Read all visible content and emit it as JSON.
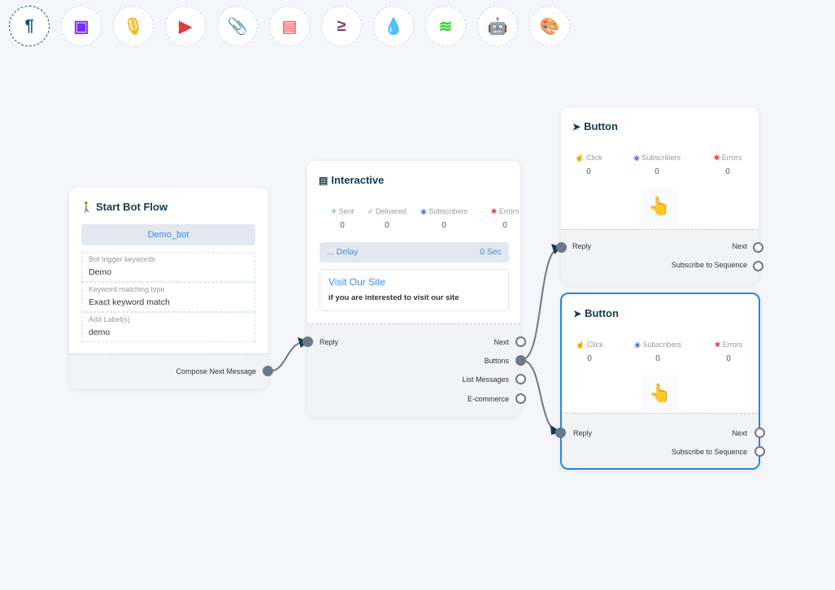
{
  "toolbar": [
    {
      "icon": "paragraph-icon",
      "glyph": "¶",
      "color": "#0d4f8b"
    },
    {
      "icon": "image-icon",
      "glyph": "▣",
      "color": "#7c2cf5"
    },
    {
      "icon": "microphone-icon",
      "glyph": "🎙",
      "color": "#f5b820"
    },
    {
      "icon": "youtube-icon",
      "glyph": "▶",
      "color": "#e03c3c"
    },
    {
      "icon": "paperclip-icon",
      "glyph": "📎",
      "color": "#26a048"
    },
    {
      "icon": "newspaper-icon",
      "glyph": "▤",
      "color": "#f47b7b"
    },
    {
      "icon": "greater-equal-icon",
      "glyph": "≥",
      "color": "#7a3c7c"
    },
    {
      "icon": "droplet-icon",
      "glyph": "💧",
      "color": "#d4143c"
    },
    {
      "icon": "stack-icon",
      "glyph": "≋",
      "color": "#2ed12e"
    },
    {
      "icon": "robot-icon",
      "glyph": "🤖",
      "color": "#1a1ae6"
    },
    {
      "icon": "palette-icon",
      "glyph": "🎨",
      "color": "#1ec81e"
    }
  ],
  "start": {
    "title": "Start Bot Flow",
    "bot": "Demo_bot",
    "fields": [
      {
        "label": "Bot trigger keywords",
        "value": "Demo"
      },
      {
        "label": "Keyword matching type",
        "value": "Exact keyword match"
      },
      {
        "label": "Add Label(s)",
        "value": "demo"
      }
    ],
    "output": "Compose Next Message"
  },
  "interactive": {
    "title": "Interactive",
    "stats": [
      {
        "label": "Sent",
        "value": "0",
        "icon": "✈",
        "color": "#5aa6e6"
      },
      {
        "label": "Delivered",
        "value": "0",
        "icon": "✓",
        "color": "#3cb371"
      },
      {
        "label": "Subscribers",
        "value": "0",
        "icon": "◉",
        "color": "#4a78e6"
      },
      {
        "label": "Errors",
        "value": "0",
        "icon": "✱",
        "color": "#f04040"
      }
    ],
    "delay": "... Delay",
    "delay_value": "0 Sec",
    "card_title": "Visit Our Site",
    "card_text": "if you are interested to visit our site",
    "input": "Reply",
    "outputs": [
      "Next",
      "Buttons",
      "List Messages",
      "E-commerce"
    ]
  },
  "buttons": [
    {
      "title": "Button",
      "stats": [
        {
          "label": "Click",
          "value": "0"
        },
        {
          "label": "Subscribers",
          "value": "0"
        },
        {
          "label": "Errors",
          "value": "0"
        }
      ],
      "input": "Reply",
      "outputs": [
        "Next",
        "Subscribe to Sequence"
      ]
    },
    {
      "title": "Button",
      "stats": [
        {
          "label": "Click",
          "value": "0"
        },
        {
          "label": "Subscribers",
          "value": "0"
        },
        {
          "label": "Errors",
          "value": "0"
        }
      ],
      "input": "Reply",
      "outputs": [
        "Next",
        "Subscribe to Sequence"
      ]
    }
  ]
}
